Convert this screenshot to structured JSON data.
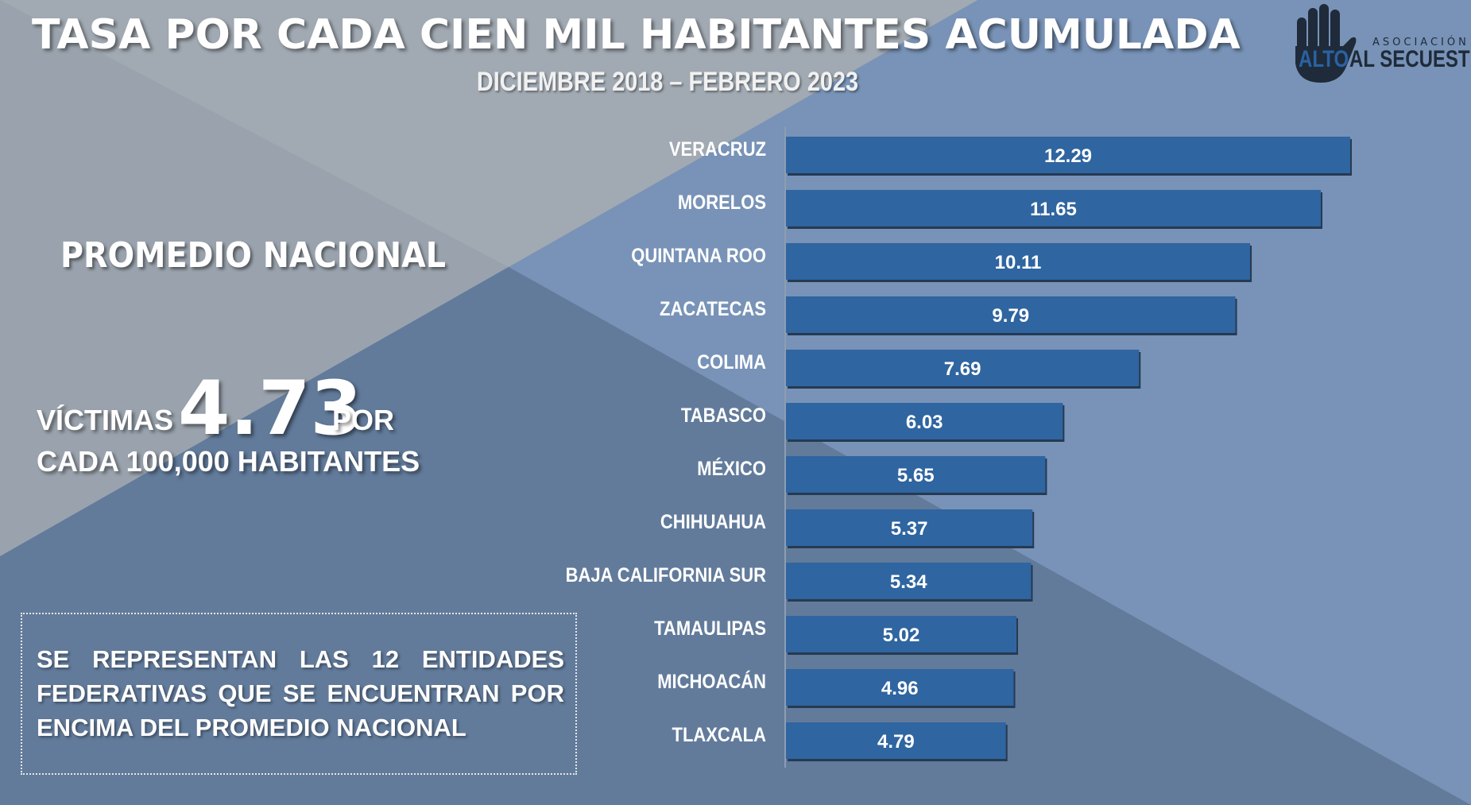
{
  "header": {
    "title": "TASA POR CADA CIEN MIL HABITANTES ACUMULADA",
    "subtitle": "DICIEMBRE 2018 – FEBRERO 2023"
  },
  "logo": {
    "small_text": "ASOCIACIÓN",
    "alto": "ALTO",
    "al_secuestro": "AL SECUESTRO"
  },
  "promedio": {
    "heading": "PROMEDIO NACIONAL",
    "victimas": "VÍCTIMAS",
    "value": "4.73",
    "por": "POR",
    "cada": "CADA 100,000 HABITANTES"
  },
  "note": "SE REPRESENTAN LAS 12 ENTIDADES FEDERATIVAS QUE SE ENCUENTRAN POR ENCIMA DEL PROMEDIO NACIONAL",
  "colors": {
    "bar": "#2f65a0",
    "bar_shadow": "#263a52",
    "bg_gray": "#9aa3ad",
    "bg_blue": "#7893b7",
    "bg_dark": "#627b9b"
  },
  "chart_data": {
    "type": "bar",
    "orientation": "horizontal",
    "title": "TASA POR CADA CIEN MIL HABITANTES ACUMULADA",
    "subtitle": "DICIEMBRE 2018 – FEBRERO 2023",
    "categories": [
      "VERACRUZ",
      "MORELOS",
      "QUINTANA ROO",
      "ZACATECAS",
      "COLIMA",
      "TABASCO",
      "MÉXICO",
      "CHIHUAHUA",
      "BAJA CALIFORNIA SUR",
      "TAMAULIPAS",
      "MICHOACÁN",
      "TLAXCALA"
    ],
    "values": [
      12.29,
      11.65,
      10.11,
      9.79,
      7.69,
      6.03,
      5.65,
      5.37,
      5.34,
      5.02,
      4.96,
      4.79
    ],
    "value_labels": [
      "12.29",
      "11.65",
      "10.11",
      "9.79",
      "7.69",
      "6.03",
      "5.65",
      "5.37",
      "5.34",
      "5.02",
      "4.96",
      "4.79"
    ],
    "xlim": [
      0,
      12.29
    ],
    "grid": false,
    "legend": "none"
  }
}
